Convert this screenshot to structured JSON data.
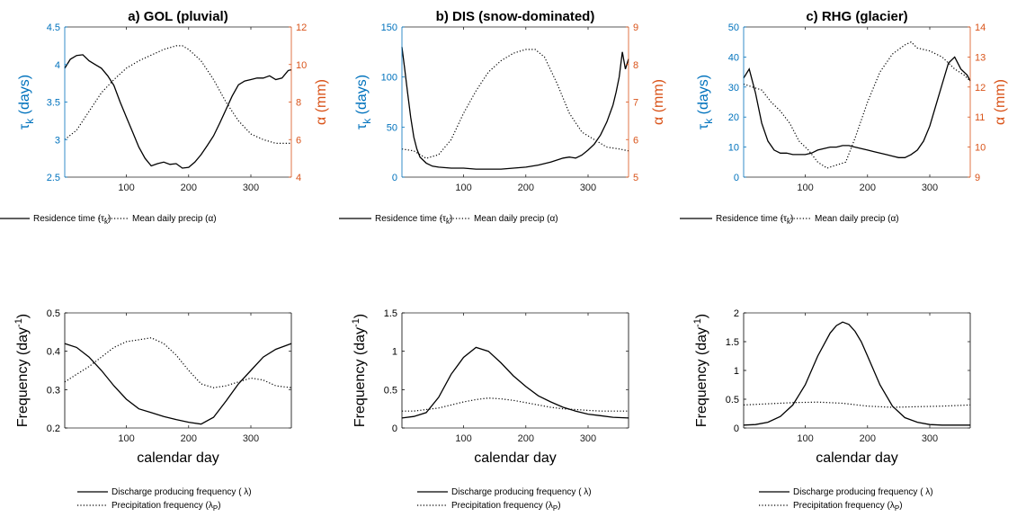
{
  "colors": {
    "left_axis": "#0072BD",
    "right_axis": "#D95319",
    "ink": "#000000"
  },
  "chart_data": [
    {
      "id": "a-top",
      "type": "line",
      "title": "a) GOL (pluvial)",
      "ylabel": "τ_k (days)",
      "ylabel_right": "α (mm)",
      "xlabel": "",
      "xlim": [
        1,
        365
      ],
      "ylim": [
        2.5,
        4.5
      ],
      "ylim_right": [
        4,
        12
      ],
      "xticks": [
        "100",
        "200",
        "300"
      ],
      "yticks": [
        "2.5",
        "3",
        "3.5",
        "4",
        "4.5"
      ],
      "yticks_right": [
        "4",
        "6",
        "8",
        "10",
        "12"
      ],
      "series": [
        {
          "name": "Residence time (τ_k)",
          "axis": "left",
          "style": "solid",
          "x": [
            1,
            10,
            20,
            30,
            40,
            50,
            60,
            70,
            80,
            90,
            100,
            110,
            120,
            130,
            140,
            150,
            160,
            170,
            180,
            190,
            200,
            210,
            220,
            230,
            240,
            250,
            260,
            270,
            280,
            290,
            300,
            310,
            320,
            330,
            340,
            350,
            360,
            365
          ],
          "y": [
            3.95,
            4.07,
            4.12,
            4.13,
            4.05,
            4.0,
            3.95,
            3.85,
            3.72,
            3.5,
            3.3,
            3.1,
            2.9,
            2.75,
            2.65,
            2.68,
            2.7,
            2.67,
            2.68,
            2.62,
            2.63,
            2.7,
            2.8,
            2.92,
            3.05,
            3.22,
            3.4,
            3.58,
            3.73,
            3.78,
            3.8,
            3.82,
            3.82,
            3.85,
            3.8,
            3.82,
            3.92,
            3.93
          ]
        },
        {
          "name": "Mean daily precip (α)",
          "axis": "right",
          "style": "dotted",
          "x": [
            1,
            20,
            40,
            60,
            80,
            100,
            120,
            140,
            160,
            180,
            190,
            200,
            220,
            240,
            260,
            280,
            300,
            320,
            340,
            365
          ],
          "y": [
            6.0,
            6.5,
            7.5,
            8.5,
            9.2,
            9.8,
            10.2,
            10.5,
            10.8,
            11.0,
            11.0,
            10.8,
            10.2,
            9.2,
            8.0,
            7.0,
            6.3,
            6.0,
            5.8,
            5.8
          ]
        }
      ]
    },
    {
      "id": "b-top",
      "type": "line",
      "title": "b) DIS (snow-dominated)",
      "ylabel": "τ_k (days)",
      "ylabel_right": "α (mm)",
      "xlabel": "",
      "xlim": [
        1,
        365
      ],
      "ylim": [
        0,
        150
      ],
      "ylim_right": [
        5,
        9
      ],
      "xticks": [
        "100",
        "200",
        "300"
      ],
      "yticks": [
        "0",
        "50",
        "100",
        "150"
      ],
      "yticks_right": [
        "5",
        "6",
        "7",
        "8",
        "9"
      ],
      "series": [
        {
          "name": "Residence time (τ_k)",
          "axis": "left",
          "style": "solid",
          "x": [
            1,
            5,
            10,
            15,
            20,
            25,
            30,
            40,
            50,
            60,
            80,
            100,
            120,
            140,
            160,
            180,
            200,
            220,
            240,
            260,
            270,
            280,
            290,
            300,
            310,
            320,
            330,
            340,
            345,
            350,
            355,
            360,
            365
          ],
          "y": [
            130,
            110,
            85,
            60,
            40,
            28,
            20,
            14,
            11,
            10,
            9,
            9,
            8,
            8,
            8,
            9,
            10,
            12,
            15,
            19,
            20,
            19,
            22,
            27,
            33,
            42,
            55,
            72,
            85,
            100,
            125,
            108,
            118
          ]
        },
        {
          "name": "Mean daily precip (α)",
          "axis": "right",
          "style": "dotted",
          "x": [
            1,
            20,
            40,
            60,
            80,
            100,
            120,
            140,
            160,
            180,
            200,
            215,
            230,
            250,
            270,
            290,
            310,
            330,
            350,
            365
          ],
          "y": [
            5.75,
            5.7,
            5.5,
            5.6,
            6.0,
            6.7,
            7.3,
            7.8,
            8.1,
            8.3,
            8.4,
            8.4,
            8.2,
            7.5,
            6.7,
            6.2,
            6.0,
            5.8,
            5.75,
            5.7
          ]
        }
      ]
    },
    {
      "id": "c-top",
      "type": "line",
      "title": "c) RHG (glacier)",
      "ylabel": "τ_k (days)",
      "ylabel_right": "α (mm)",
      "xlabel": "",
      "xlim": [
        1,
        365
      ],
      "ylim": [
        0,
        50
      ],
      "ylim_right": [
        9,
        14
      ],
      "xticks": [
        "100",
        "200",
        "300"
      ],
      "yticks": [
        "0",
        "10",
        "20",
        "30",
        "40",
        "50"
      ],
      "yticks_right": [
        "9",
        "10",
        "11",
        "12",
        "13",
        "14"
      ],
      "series": [
        {
          "name": "Residence time (τ_k)",
          "axis": "left",
          "style": "solid",
          "x": [
            1,
            10,
            20,
            30,
            40,
            50,
            60,
            70,
            80,
            90,
            100,
            110,
            120,
            130,
            140,
            150,
            160,
            170,
            180,
            190,
            200,
            210,
            220,
            230,
            240,
            250,
            260,
            270,
            280,
            290,
            300,
            310,
            320,
            330,
            340,
            350,
            360,
            365
          ],
          "y": [
            33,
            36,
            28,
            18,
            12,
            9,
            8,
            8,
            7.5,
            7.5,
            7.5,
            8,
            9,
            9.5,
            10,
            10,
            10.5,
            10.5,
            10,
            9.5,
            9,
            8.5,
            8,
            7.5,
            7,
            6.5,
            6.5,
            7.5,
            9,
            12,
            17,
            24,
            31,
            38,
            40,
            36,
            34,
            32
          ]
        },
        {
          "name": "Mean daily precip (α)",
          "axis": "right",
          "style": "dotted",
          "x": [
            1,
            15,
            30,
            45,
            60,
            75,
            90,
            105,
            120,
            135,
            150,
            165,
            180,
            200,
            220,
            240,
            260,
            270,
            280,
            300,
            320,
            340,
            355,
            365
          ],
          "y": [
            12.1,
            12.0,
            11.9,
            11.5,
            11.2,
            10.8,
            10.2,
            9.9,
            9.5,
            9.3,
            9.4,
            9.5,
            10.3,
            11.5,
            12.5,
            13.1,
            13.4,
            13.5,
            13.3,
            13.2,
            13.0,
            12.6,
            12.4,
            12.2
          ]
        }
      ]
    },
    {
      "id": "a-bottom",
      "type": "line",
      "title": "",
      "ylabel": "Frequency (day^-1)",
      "xlabel": "calendar day",
      "xlim": [
        1,
        365
      ],
      "ylim": [
        0.2,
        0.5
      ],
      "xticks": [
        "100",
        "200",
        "300"
      ],
      "yticks": [
        "0.2",
        "0.3",
        "0.4",
        "0.5"
      ],
      "series": [
        {
          "name": "Discharge producing frequency (λ)",
          "axis": "left",
          "style": "solid",
          "x": [
            1,
            20,
            40,
            60,
            80,
            100,
            120,
            140,
            160,
            180,
            200,
            220,
            240,
            260,
            280,
            300,
            320,
            340,
            365
          ],
          "y": [
            0.42,
            0.41,
            0.385,
            0.35,
            0.31,
            0.275,
            0.25,
            0.24,
            0.23,
            0.222,
            0.215,
            0.21,
            0.228,
            0.27,
            0.315,
            0.35,
            0.385,
            0.405,
            0.42
          ]
        },
        {
          "name": "Precipitation frequency (λ_P)",
          "axis": "left",
          "style": "dotted",
          "x": [
            1,
            20,
            40,
            60,
            80,
            100,
            120,
            140,
            160,
            180,
            200,
            220,
            240,
            260,
            280,
            300,
            320,
            340,
            365
          ],
          "y": [
            0.32,
            0.34,
            0.36,
            0.385,
            0.41,
            0.425,
            0.43,
            0.435,
            0.42,
            0.39,
            0.35,
            0.315,
            0.305,
            0.31,
            0.32,
            0.33,
            0.325,
            0.31,
            0.305
          ]
        }
      ]
    },
    {
      "id": "b-bottom",
      "type": "line",
      "title": "",
      "ylabel": "Frequency (day^-1)",
      "xlabel": "calendar day",
      "xlim": [
        1,
        365
      ],
      "ylim": [
        0,
        1.5
      ],
      "xticks": [
        "100",
        "200",
        "300"
      ],
      "yticks": [
        "0",
        "0.5",
        "1",
        "1.5"
      ],
      "series": [
        {
          "name": "Discharge producing frequency (λ)",
          "axis": "left",
          "style": "solid",
          "x": [
            1,
            20,
            40,
            60,
            80,
            100,
            120,
            140,
            160,
            180,
            200,
            220,
            240,
            260,
            280,
            300,
            320,
            340,
            365
          ],
          "y": [
            0.13,
            0.15,
            0.2,
            0.4,
            0.7,
            0.92,
            1.05,
            1.0,
            0.85,
            0.68,
            0.54,
            0.42,
            0.34,
            0.27,
            0.22,
            0.18,
            0.16,
            0.14,
            0.13
          ]
        },
        {
          "name": "Precipitation frequency (λ_P)",
          "axis": "left",
          "style": "dotted",
          "x": [
            1,
            20,
            40,
            60,
            80,
            100,
            120,
            140,
            160,
            180,
            200,
            220,
            240,
            260,
            280,
            300,
            320,
            340,
            365
          ],
          "y": [
            0.22,
            0.22,
            0.24,
            0.26,
            0.3,
            0.34,
            0.37,
            0.39,
            0.38,
            0.36,
            0.33,
            0.3,
            0.27,
            0.25,
            0.24,
            0.23,
            0.22,
            0.22,
            0.22
          ]
        }
      ]
    },
    {
      "id": "c-bottom",
      "type": "line",
      "title": "",
      "ylabel": "Frequency (day^-1)",
      "xlabel": "calendar day",
      "xlim": [
        1,
        365
      ],
      "ylim": [
        0,
        2
      ],
      "xticks": [
        "100",
        "200",
        "300"
      ],
      "yticks": [
        "0",
        "0.5",
        "1",
        "1.5",
        "2"
      ],
      "series": [
        {
          "name": "Discharge producing frequency (λ)",
          "axis": "left",
          "style": "solid",
          "x": [
            1,
            20,
            40,
            60,
            80,
            100,
            120,
            140,
            150,
            160,
            170,
            180,
            190,
            200,
            220,
            240,
            260,
            280,
            300,
            320,
            340,
            365
          ],
          "y": [
            0.05,
            0.06,
            0.1,
            0.2,
            0.4,
            0.75,
            1.25,
            1.65,
            1.78,
            1.84,
            1.8,
            1.68,
            1.5,
            1.25,
            0.75,
            0.38,
            0.18,
            0.1,
            0.06,
            0.05,
            0.05,
            0.05
          ]
        },
        {
          "name": "Precipitation frequency (λ_P)",
          "axis": "left",
          "style": "dotted",
          "x": [
            1,
            40,
            80,
            120,
            160,
            200,
            240,
            280,
            320,
            365
          ],
          "y": [
            0.4,
            0.42,
            0.44,
            0.45,
            0.43,
            0.38,
            0.36,
            0.37,
            0.38,
            0.4
          ]
        }
      ]
    }
  ],
  "legends": {
    "top": [
      "Residence time (τ_k)",
      "Mean daily precip (α)"
    ],
    "bottom": [
      "Discharge producing frequency (λ)",
      "Precipitation frequency (λ_P)"
    ]
  }
}
